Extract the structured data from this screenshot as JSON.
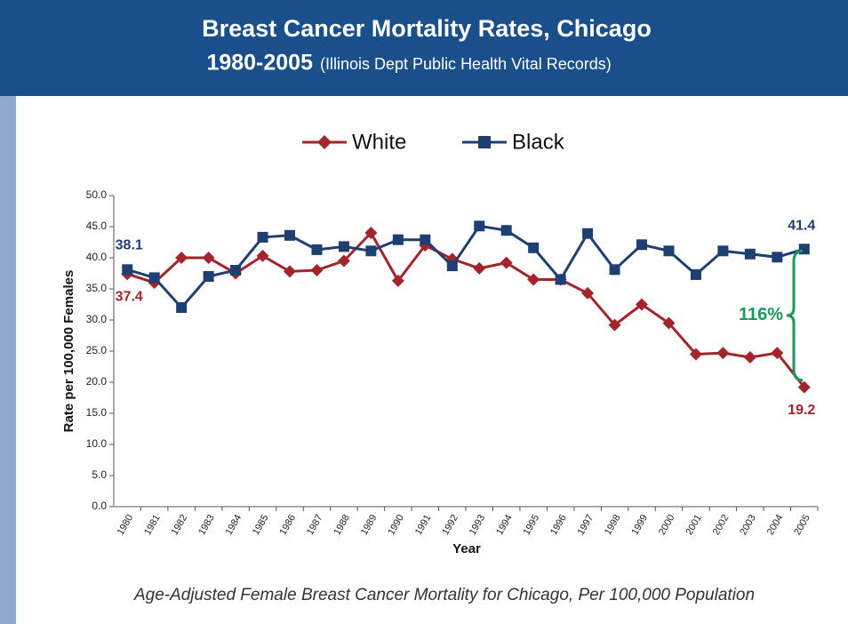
{
  "chart_data": {
    "type": "line",
    "title": "Breast Cancer Mortality Rates, Chicago",
    "subtitle": "1980-2005",
    "source": "(Illinois Dept Public Health Vital Records)",
    "caption": "Age-Adjusted Female Breast Cancer Mortality for Chicago, Per 100,000 Population",
    "x_label": "Year",
    "y_label": "Rate per 100,000 Females",
    "categories": [
      "1980",
      "1981",
      "1982",
      "1983",
      "1984",
      "1985",
      "1986",
      "1987",
      "1988",
      "1989",
      "1990",
      "1991",
      "1992",
      "1993",
      "1994",
      "1995",
      "1996",
      "1997",
      "1998",
      "1999",
      "2000",
      "2001",
      "2002",
      "2003",
      "2004",
      "2005"
    ],
    "series": [
      {
        "name": "White",
        "color": "#a3242a",
        "marker": "diamond",
        "values": [
          37.4,
          36.0,
          40.0,
          40.0,
          37.5,
          40.3,
          37.8,
          38.0,
          39.5,
          44.0,
          36.3,
          42.0,
          39.8,
          38.3,
          39.2,
          36.5,
          36.5,
          34.3,
          29.2,
          32.5,
          29.5,
          24.5,
          24.7,
          24.0,
          24.7,
          19.2
        ]
      },
      {
        "name": "Black",
        "color": "#1f3f73",
        "marker": "square",
        "values": [
          38.1,
          36.8,
          32.0,
          37.0,
          38.0,
          43.3,
          43.6,
          41.3,
          41.8,
          41.1,
          42.9,
          42.9,
          38.7,
          45.1,
          44.4,
          41.6,
          36.5,
          43.9,
          38.1,
          42.1,
          41.1,
          37.3,
          41.1,
          40.6,
          40.1,
          41.4
        ]
      }
    ],
    "ylim": [
      0,
      50
    ],
    "yticks": [
      {
        "value": 0,
        "label": "0.0"
      },
      {
        "value": 5,
        "label": "5.0"
      },
      {
        "value": 10,
        "label": "10.0"
      },
      {
        "value": 15,
        "label": "15.0"
      },
      {
        "value": 20,
        "label": "20.0"
      },
      {
        "value": 25,
        "label": "25.0"
      },
      {
        "value": 30,
        "label": "30.0"
      },
      {
        "value": 35,
        "label": "35.0"
      },
      {
        "value": 40,
        "label": "40.0"
      },
      {
        "value": 45,
        "label": "45.0"
      },
      {
        "value": 50,
        "label": "50.0"
      }
    ],
    "annotation": {
      "text": "116%",
      "color": "#1a9a5a"
    },
    "legend": "top"
  }
}
